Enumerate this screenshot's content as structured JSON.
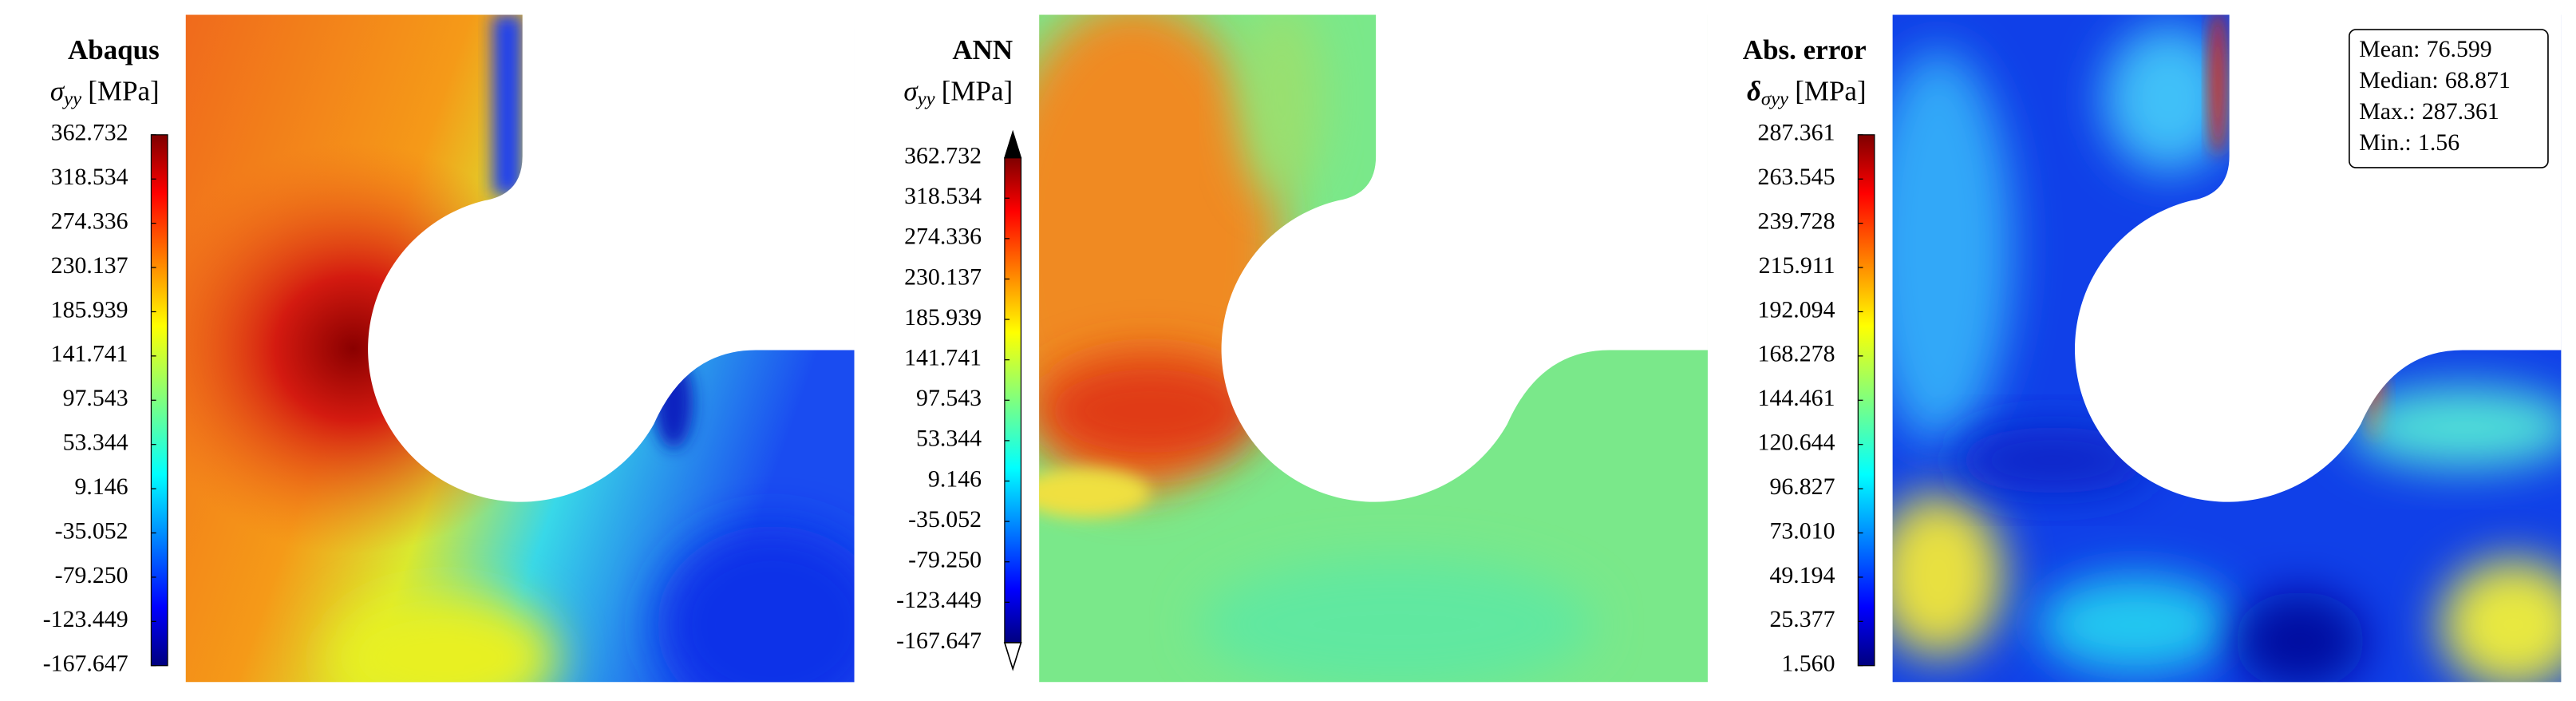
{
  "chart_data": [
    {
      "type": "contour",
      "title": "Abaqus",
      "colorbar_symbol": "σ",
      "colorbar_subscript": "yy",
      "colorbar_unit": "[MPa]",
      "colormap": "jet",
      "extend": "neither",
      "clim": [
        -167.647,
        362.732
      ],
      "cticks": [
        362.732,
        318.534,
        274.336,
        230.137,
        185.939,
        141.741,
        97.543,
        53.344,
        9.146,
        -35.052,
        {
          "value": -79.25,
          "label": "-79.250"
        },
        -123.449,
        -167.647
      ]
    },
    {
      "type": "contour",
      "title": "ANN",
      "colorbar_symbol": "σ",
      "colorbar_subscript": "yy",
      "colorbar_unit": "[MPa]",
      "colormap": "jet",
      "extend": "both",
      "clim": [
        -167.647,
        362.732
      ],
      "cticks": [
        362.732,
        318.534,
        274.336,
        230.137,
        185.939,
        141.741,
        97.543,
        53.344,
        9.146,
        -35.052,
        {
          "value": -79.25,
          "label": "-79.250"
        },
        -123.449,
        -167.647
      ]
    },
    {
      "type": "contour",
      "title": "Abs. error",
      "colorbar_symbol": "δ",
      "colorbar_subscript": "σyy",
      "colorbar_unit": "[MPa]",
      "colormap": "jet",
      "extend": "neither",
      "clim": [
        1.56,
        287.361
      ],
      "cticks": [
        287.361,
        263.545,
        239.728,
        215.911,
        192.094,
        168.278,
        144.461,
        120.644,
        96.827,
        {
          "value": 73.01,
          "label": "73.010"
        },
        49.194,
        25.377,
        {
          "value": 1.56,
          "label": "1.560"
        }
      ],
      "stats": [
        {
          "label": "Mean:",
          "value": 76.599
        },
        {
          "label": "Median:",
          "value": 68.871
        },
        {
          "label": "Max.:",
          "value": 287.361
        },
        {
          "label": "Min.:",
          "value": 1.56
        }
      ]
    }
  ]
}
